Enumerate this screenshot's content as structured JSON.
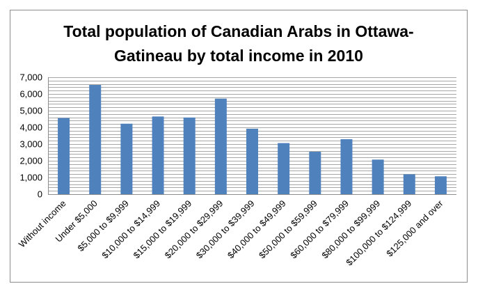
{
  "chart_data": {
    "type": "bar",
    "title_line1": "Total population of Canadian Arabs in Ottawa-",
    "title_line2": "Gatineau by total income in 2010",
    "xlabel": "",
    "ylabel": "",
    "categories": [
      "Without income",
      "Under $5,000",
      "$5,000 to $9,999",
      "$10,000 to $14,999",
      "$15,000 to $19,999",
      "$20,000 to $29,999",
      "$30,000 to $39,999",
      "$40,000 to $49,999",
      "$50,000 to $59,999",
      "$60,000 to $79,999",
      "$80,000 to $99,999",
      "$100,000 to $124,999",
      "$125,000 and over"
    ],
    "values": [
      4560,
      6540,
      4220,
      4650,
      4590,
      5720,
      3920,
      3060,
      2540,
      3290,
      2070,
      1190,
      1070
    ],
    "ylim": [
      0,
      7000
    ],
    "yticks": [
      "0",
      "1,000",
      "2,000",
      "3,000",
      "4,000",
      "5,000",
      "6,000",
      "7,000"
    ],
    "minor_grid_step": 200,
    "grid": true,
    "legend": "none",
    "bar_color": "#4f81bd",
    "grid_color": "#a6a6a6"
  }
}
